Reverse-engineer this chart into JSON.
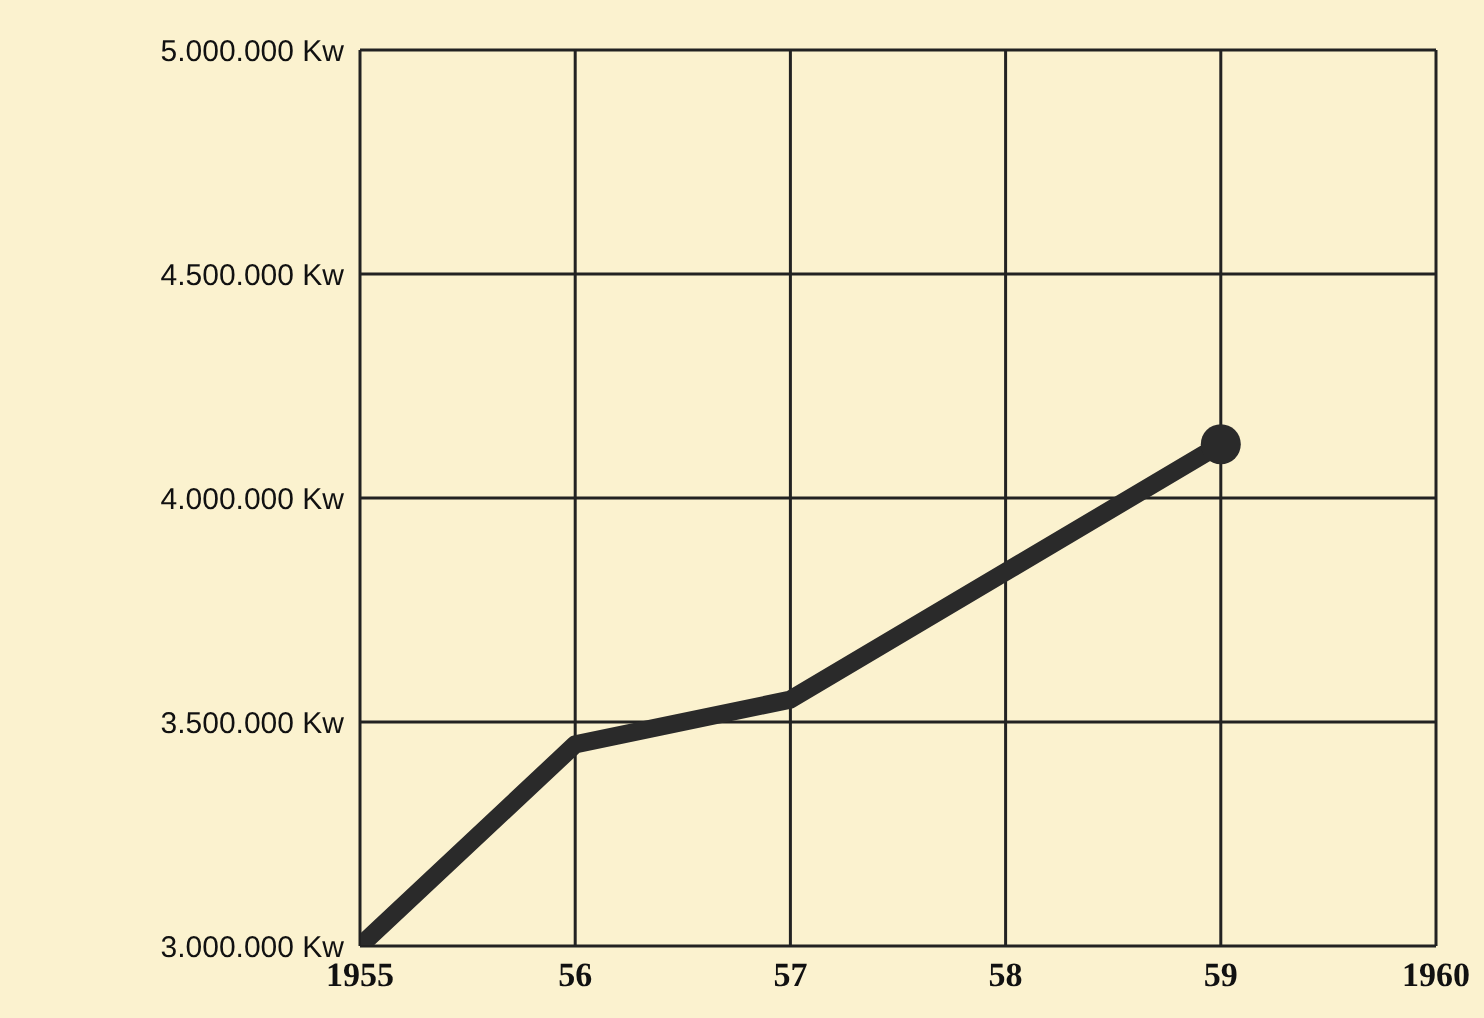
{
  "chart_data": {
    "type": "line",
    "x": [
      1955,
      1956,
      1957,
      1959
    ],
    "series": [
      {
        "color": "#2a2a2a",
        "values": [
          3000000,
          3450000,
          3550000,
          4120000
        ]
      }
    ],
    "xlim": [
      1955,
      1960
    ],
    "xticks": [
      1955,
      {
        "value": 1956,
        "label": "56"
      },
      {
        "value": 1957,
        "label": "57"
      },
      {
        "value": 1958,
        "label": "58"
      },
      {
        "value": 1959,
        "label": "59"
      },
      1960
    ],
    "ylim": [
      3000000,
      5000000
    ],
    "yticks": [
      {
        "value": 3000000,
        "label": "3.000.000 Kw"
      },
      {
        "value": 3500000,
        "label": "3.500.000 Kw"
      },
      {
        "value": 4000000,
        "label": "4.000.000 Kw"
      },
      {
        "value": 4500000,
        "label": "4.500.000 Kw"
      },
      {
        "value": 5000000,
        "label": "5.000.000 Kw"
      }
    ],
    "grid": true
  }
}
